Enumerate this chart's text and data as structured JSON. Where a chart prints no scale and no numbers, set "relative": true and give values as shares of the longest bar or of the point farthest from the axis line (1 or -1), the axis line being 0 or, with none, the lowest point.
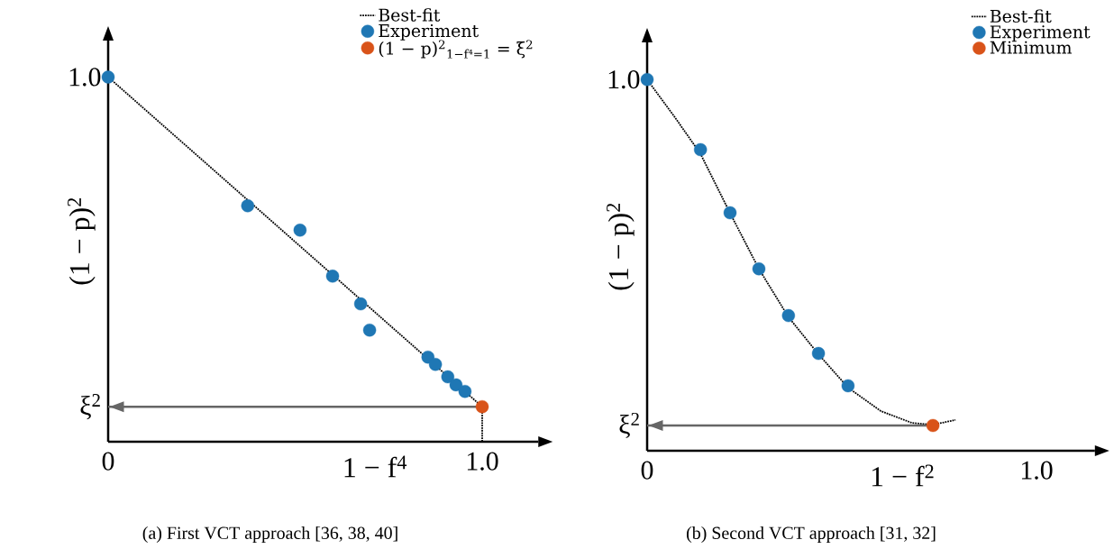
{
  "chart_data": [
    {
      "type": "scatter",
      "xlabel": "1 − f$^{4}$",
      "ylabel": "(1 − p)$^{2}$",
      "xlim": [
        0,
        1.15
      ],
      "relative": true,
      "xticks": [
        0,
        {
          "value": 1.0,
          "label": "1.0"
        }
      ],
      "legend": "top right",
      "series": [
        {
          "name": "Best-fit",
          "type": "line",
          "line_style": "dotted",
          "marker": "none",
          "color": "#000000",
          "x": [
            0,
            1.0,
            1.0
          ],
          "values": [
            1.0,
            0.096,
            0
          ]
        },
        {
          "name": "Experiment",
          "type": "scatter",
          "marker": "circle",
          "color": "#1f77b4",
          "x": [
            0,
            0.373,
            0.513,
            0.6,
            0.675,
            0.699,
            0.855,
            0.875,
            0.908,
            0.93,
            0.954
          ],
          "values": [
            1.0,
            0.647,
            0.58,
            0.454,
            0.378,
            0.306,
            0.232,
            0.212,
            0.178,
            0.156,
            0.138
          ]
        },
        {
          "name": "(1 − p)$^{2}$$_{1−f⁴=1}$ = ξ$^{2}$",
          "type": "scatter",
          "marker": "circle",
          "color": "#d95319",
          "x": [
            1.0
          ],
          "values": [
            0.096
          ]
        }
      ],
      "ref_lines": [
        {
          "axis": "y",
          "value": 0.096,
          "color": "#666666",
          "label": "ξ$^{2}$"
        }
      ],
      "annotations": [
        {
          "text": "1.0",
          "x": 0,
          "y": 1.0
        },
        "(a) First VCT approach [36, 38, 40]"
      ]
    },
    {
      "type": "scatter",
      "xlabel": "1 − f$^{2}$",
      "ylabel": "(1 − p)$^{2}$",
      "xlim": [
        0,
        1.15
      ],
      "relative": true,
      "xticks": [
        0,
        {
          "value": 1.0,
          "label": "1.0"
        }
      ],
      "legend": "top right",
      "series": [
        {
          "name": "Best-fit",
          "type": "line",
          "line_style": "dotted",
          "marker": "none",
          "color": "#000000",
          "x": [
            0,
            0.07,
            0.137,
            0.213,
            0.287,
            0.363,
            0.44,
            0.516,
            0.6,
            0.68,
            0.734,
            0.792
          ],
          "values": [
            1.0,
            0.9,
            0.8,
            0.64,
            0.49,
            0.36,
            0.26,
            0.17,
            0.107,
            0.075,
            0.07,
            0.083
          ]
        },
        {
          "name": "Experiment",
          "type": "scatter",
          "marker": "circle",
          "color": "#1f77b4",
          "x": [
            0,
            0.137,
            0.213,
            0.287,
            0.363,
            0.44,
            0.516
          ],
          "values": [
            1.0,
            0.811,
            0.641,
            0.49,
            0.364,
            0.262,
            0.175
          ]
        },
        {
          "name": "Minimum",
          "type": "scatter",
          "marker": "circle",
          "color": "#d95319",
          "x": [
            0.734
          ],
          "values": [
            0.068
          ]
        }
      ],
      "ref_lines": [
        {
          "axis": "y",
          "value": 0.068,
          "color": "#666666",
          "label": "ξ$^{2}$"
        }
      ],
      "annotations": [
        {
          "text": "1.0",
          "x": 0,
          "y": 1.0
        },
        "(b) Second VCT approach [31, 32]"
      ]
    }
  ]
}
